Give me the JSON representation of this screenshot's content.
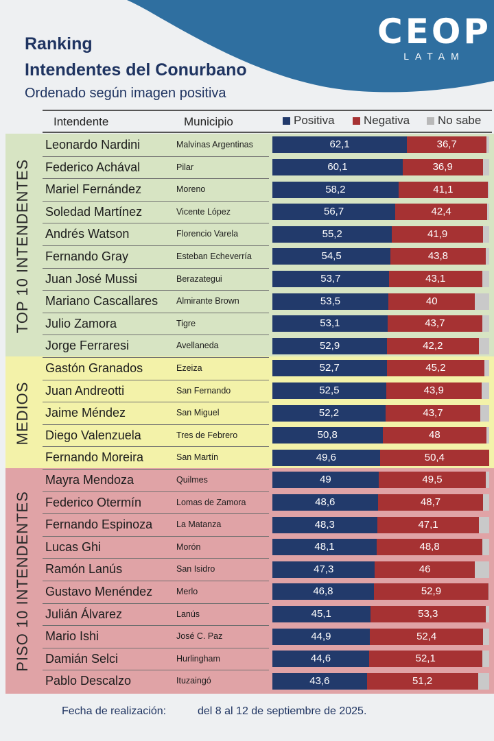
{
  "brand": {
    "logo_main": "CEOP",
    "logo_sub": "LATAM",
    "brand_color": "#1f3461",
    "wave_color": "#2f6fa0"
  },
  "header": {
    "title_line1": "Ranking",
    "title_line2": "Intendentes del Conurbano",
    "subtitle": "Ordenado según imagen positiva"
  },
  "table": {
    "col_intendente": "Intendente",
    "col_municipio": "Municipio"
  },
  "legend": {
    "positiva": "Positiva",
    "negativa": "Negativa",
    "no_sabe": "No sabe"
  },
  "groups": [
    {
      "label": "TOP 10 INTENDENTES",
      "color": "#d7e4c3"
    },
    {
      "label": "MEDIOS",
      "color": "#f3f2a9"
    },
    {
      "label": "PISO 10 INTENDENTES",
      "color": "#e0a3a6"
    }
  ],
  "colors": {
    "positiva": "#223a6b",
    "negativa": "#a63233",
    "no_sabe": "#c9c9c9"
  },
  "chart_data": {
    "type": "bar",
    "orientation": "horizontal",
    "stacked": true,
    "xlim": [
      0,
      100
    ],
    "categories": [
      "Leonardo Nardini",
      "Federico Achával",
      "Mariel Fernández",
      "Soledad Martínez",
      "Andrés Watson",
      "Fernando Gray",
      "Juan José Mussi",
      "Mariano Cascallares",
      "Julio Zamora",
      "Jorge Ferraresi",
      "Gastón Granados",
      "Juan Andreotti",
      "Jaime Méndez",
      "Diego Valenzuela",
      "Fernando Moreira",
      "Mayra Mendoza",
      "Federico Otermín",
      "Fernando Espinoza",
      "Lucas Ghi",
      "Ramón Lanús",
      "Gustavo Menéndez",
      "Julián Álvarez",
      "Mario Ishi",
      "Damián Selci",
      "Pablo Descalzo"
    ],
    "municipios": [
      "Malvinas Argentinas",
      "Pilar",
      "Moreno",
      "Vicente López",
      "Florencio Varela",
      "Esteban Echeverría",
      "Berazategui",
      "Almirante Brown",
      "Tigre",
      "Avellaneda",
      "Ezeiza",
      "San Fernando",
      "San Miguel",
      "Tres de Febrero",
      "San Martín",
      "Quilmes",
      "Lomas de Zamora",
      "La Matanza",
      "Morón",
      "San Isidro",
      "Merlo",
      "Lanús",
      "José C. Paz",
      "Hurlingham",
      "Ituzaingó"
    ],
    "group_index": [
      0,
      0,
      0,
      0,
      0,
      0,
      0,
      0,
      0,
      0,
      1,
      1,
      1,
      1,
      1,
      2,
      2,
      2,
      2,
      2,
      2,
      2,
      2,
      2,
      2
    ],
    "series": [
      {
        "name": "Positiva",
        "values": [
          62.1,
          60.1,
          58.2,
          56.7,
          55.2,
          54.5,
          53.7,
          53.5,
          53.1,
          52.9,
          52.7,
          52.5,
          52.2,
          50.8,
          49.6,
          49,
          48.6,
          48.3,
          48.1,
          47.3,
          46.8,
          45.1,
          44.9,
          44.6,
          43.6
        ],
        "labels": [
          "62,1",
          "60,1",
          "58,2",
          "56,7",
          "55,2",
          "54,5",
          "53,7",
          "53,5",
          "53,1",
          "52,9",
          "52,7",
          "52,5",
          "52,2",
          "50,8",
          "49,6",
          "49",
          "48,6",
          "48,3",
          "48,1",
          "47,3",
          "46,8",
          "45,1",
          "44,9",
          "44,6",
          "43,6"
        ]
      },
      {
        "name": "Negativa",
        "values": [
          36.7,
          36.9,
          41.1,
          42.4,
          41.9,
          43.8,
          43.1,
          40,
          43.7,
          42.2,
          45.2,
          43.9,
          43.7,
          48,
          50.4,
          49.5,
          48.7,
          47.1,
          48.8,
          46,
          52.9,
          53.3,
          52.4,
          52.1,
          51.2
        ],
        "labels": [
          "36,7",
          "36,9",
          "41,1",
          "42,4",
          "41,9",
          "43,8",
          "43,1",
          "40",
          "43,7",
          "42,2",
          "45,2",
          "43,9",
          "43,7",
          "48",
          "50,4",
          "49,5",
          "48,7",
          "47,1",
          "48,8",
          "46",
          "52,9",
          "53,3",
          "52,4",
          "52,1",
          "51,2"
        ]
      },
      {
        "name": "No sabe",
        "values": [
          1.2,
          3.0,
          0.7,
          0.9,
          2.9,
          1.7,
          3.2,
          6.5,
          3.2,
          4.9,
          2.1,
          3.6,
          4.1,
          1.2,
          0,
          1.5,
          2.7,
          4.6,
          3.1,
          6.7,
          0.3,
          1.6,
          2.7,
          3.3,
          5.2
        ]
      }
    ]
  },
  "footer": {
    "label": "Fecha de realización:",
    "date": "del 8 al 12 de septiembre de 2025."
  }
}
